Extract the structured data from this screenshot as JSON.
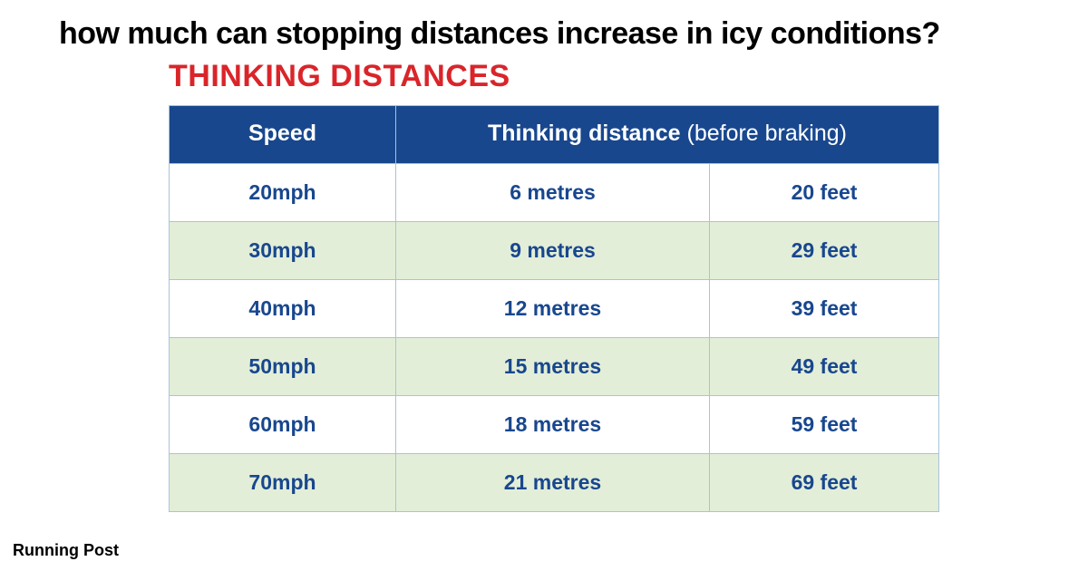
{
  "page_title": "how much can stopping distances increase in icy conditions?",
  "section_title": "THINKING DISTANCES",
  "footer_label": "Running Post",
  "table": {
    "type": "table",
    "header_bg": "#18478e",
    "header_fg": "#ffffff",
    "row_bg": "#ffffff",
    "row_alt_bg": "#e3eed8",
    "border_color": "#a9c4d7",
    "cell_text_color": "#18478e",
    "title_color": "#d9252a",
    "title_fontsize": 34,
    "header_fontsize": 25,
    "cell_fontsize": 23,
    "columns": [
      {
        "label": "Speed",
        "colspan": 1
      },
      {
        "label_bold": "Thinking distance",
        "label_thin": " (before braking)",
        "colspan": 2
      }
    ],
    "rows": [
      {
        "speed": "20mph",
        "metres": "6 metres",
        "feet": "20 feet",
        "alt": false
      },
      {
        "speed": "30mph",
        "metres": "9 metres",
        "feet": "29 feet",
        "alt": true
      },
      {
        "speed": "40mph",
        "metres": "12 metres",
        "feet": "39 feet",
        "alt": false
      },
      {
        "speed": "50mph",
        "metres": "15 metres",
        "feet": "49 feet",
        "alt": true
      },
      {
        "speed": "60mph",
        "metres": "18 metres",
        "feet": "59 feet",
        "alt": false
      },
      {
        "speed": "70mph",
        "metres": "21 metres",
        "feet": "69 feet",
        "alt": true
      }
    ]
  }
}
